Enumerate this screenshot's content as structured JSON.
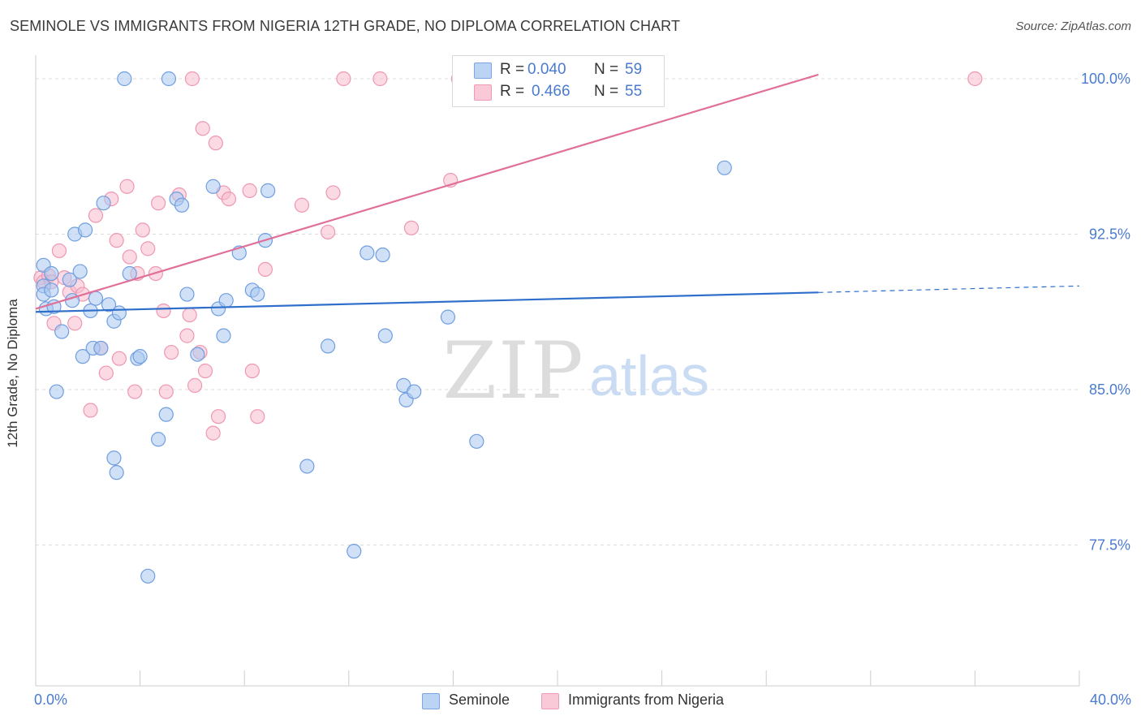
{
  "header": {
    "title": "SEMINOLE VS IMMIGRANTS FROM NIGERIA 12TH GRADE, NO DIPLOMA CORRELATION CHART",
    "source": "Source: ZipAtlas.com"
  },
  "watermark": {
    "zip": "ZIP",
    "atlas": "atlas"
  },
  "legend_top": {
    "rows": [
      {
        "r_label": "R =",
        "r_value": "0.040",
        "n_label": "N =",
        "n_value": "59"
      },
      {
        "r_label": "R =",
        "r_value": "0.466",
        "n_label": "N =",
        "n_value": "55"
      }
    ]
  },
  "legend_bottom": {
    "items": [
      "Seminole",
      "Immigrants from Nigeria"
    ]
  },
  "axis": {
    "x_min_label": "0.0%",
    "x_max_label": "40.0%"
  },
  "colors": {
    "seminole_fill": "#aac8f0",
    "seminole_stroke": "#6f9ee0",
    "seminole_line": "#2f6fcb",
    "nigeria_fill": "#f7bccd",
    "nigeria_stroke": "#ef97b1",
    "nigeria_line": "#e0709a",
    "tick_label": "#4a7bd0",
    "grid": "#dddddd"
  },
  "chart_data": {
    "type": "scatter",
    "title": "SEMINOLE VS IMMIGRANTS FROM NIGERIA 12TH GRADE, NO DIPLOMA CORRELATION CHART",
    "xlabel": "",
    "ylabel": "12th Grade, No Diploma",
    "xlim": [
      0,
      40
    ],
    "ylim": [
      70.0,
      100.5
    ],
    "x_unit": "%",
    "y_unit": "%",
    "yticks": [
      77.5,
      85.0,
      92.5,
      100.0
    ],
    "ytick_labels": [
      "77.5%",
      "85.0%",
      "92.5%",
      "100.0%"
    ],
    "grid": "horizontal dashed",
    "legend_position": "top-center",
    "series": [
      {
        "name": "Seminole",
        "r": 0.04,
        "n": 59,
        "trend": {
          "x": [
            0,
            30,
            40
          ],
          "y": [
            88.75,
            89.7,
            90.0
          ],
          "dashed_from_x": 30
        },
        "points": [
          [
            0.3,
            91.0
          ],
          [
            0.3,
            90.0
          ],
          [
            0.3,
            89.6
          ],
          [
            0.4,
            88.9
          ],
          [
            0.6,
            90.6
          ],
          [
            0.6,
            89.8
          ],
          [
            0.7,
            89.0
          ],
          [
            0.8,
            84.9
          ],
          [
            1.0,
            87.8
          ],
          [
            1.3,
            90.3
          ],
          [
            1.4,
            89.3
          ],
          [
            1.5,
            92.5
          ],
          [
            1.7,
            90.7
          ],
          [
            1.8,
            86.6
          ],
          [
            1.9,
            92.7
          ],
          [
            2.1,
            88.8
          ],
          [
            2.2,
            87.0
          ],
          [
            2.3,
            89.4
          ],
          [
            2.5,
            87.0
          ],
          [
            2.6,
            94.0
          ],
          [
            2.8,
            89.1
          ],
          [
            3.0,
            81.7
          ],
          [
            3.0,
            88.3
          ],
          [
            3.1,
            81.0
          ],
          [
            3.2,
            88.7
          ],
          [
            3.4,
            100.0
          ],
          [
            3.6,
            90.6
          ],
          [
            3.9,
            86.5
          ],
          [
            4.0,
            86.6
          ],
          [
            4.3,
            76.0
          ],
          [
            4.7,
            82.6
          ],
          [
            5.0,
            83.8
          ],
          [
            5.1,
            100.0
          ],
          [
            5.4,
            94.2
          ],
          [
            5.6,
            93.9
          ],
          [
            5.8,
            89.6
          ],
          [
            6.2,
            86.7
          ],
          [
            6.8,
            94.8
          ],
          [
            7.0,
            88.9
          ],
          [
            7.2,
            87.6
          ],
          [
            7.3,
            89.3
          ],
          [
            7.8,
            91.6
          ],
          [
            8.3,
            89.8
          ],
          [
            8.5,
            89.6
          ],
          [
            8.8,
            92.2
          ],
          [
            8.9,
            94.6
          ],
          [
            10.4,
            81.3
          ],
          [
            11.2,
            87.1
          ],
          [
            12.2,
            77.2
          ],
          [
            12.7,
            91.6
          ],
          [
            13.3,
            91.5
          ],
          [
            13.4,
            87.6
          ],
          [
            14.1,
            85.2
          ],
          [
            14.2,
            84.5
          ],
          [
            14.5,
            84.9
          ],
          [
            15.8,
            88.5
          ],
          [
            16.9,
            82.5
          ],
          [
            19.9,
            100.0
          ],
          [
            26.4,
            95.7
          ]
        ]
      },
      {
        "name": "Immigrants from Nigeria",
        "r": 0.466,
        "n": 55,
        "trend": {
          "x": [
            0,
            30
          ],
          "y": [
            88.9,
            100.2
          ]
        },
        "points": [
          [
            0.2,
            90.4
          ],
          [
            0.3,
            90.2
          ],
          [
            0.5,
            90.5
          ],
          [
            0.6,
            90.2
          ],
          [
            0.7,
            88.2
          ],
          [
            0.9,
            91.7
          ],
          [
            1.1,
            90.4
          ],
          [
            1.3,
            89.7
          ],
          [
            1.5,
            88.2
          ],
          [
            1.6,
            90.0
          ],
          [
            1.8,
            89.6
          ],
          [
            2.1,
            84.0
          ],
          [
            2.3,
            93.4
          ],
          [
            2.5,
            87.0
          ],
          [
            2.7,
            85.8
          ],
          [
            2.9,
            94.2
          ],
          [
            3.1,
            92.2
          ],
          [
            3.2,
            86.5
          ],
          [
            3.5,
            94.8
          ],
          [
            3.6,
            91.4
          ],
          [
            3.8,
            84.9
          ],
          [
            3.9,
            90.6
          ],
          [
            4.1,
            92.7
          ],
          [
            4.3,
            91.8
          ],
          [
            4.6,
            90.6
          ],
          [
            4.7,
            94.0
          ],
          [
            4.9,
            88.8
          ],
          [
            5.0,
            84.9
          ],
          [
            5.2,
            86.8
          ],
          [
            5.5,
            94.4
          ],
          [
            5.8,
            87.6
          ],
          [
            5.9,
            88.6
          ],
          [
            6.0,
            100.0
          ],
          [
            6.1,
            85.2
          ],
          [
            6.3,
            86.8
          ],
          [
            6.4,
            97.6
          ],
          [
            6.5,
            85.9
          ],
          [
            6.8,
            82.9
          ],
          [
            6.9,
            96.9
          ],
          [
            7.0,
            83.7
          ],
          [
            7.2,
            94.5
          ],
          [
            7.4,
            94.2
          ],
          [
            8.2,
            94.6
          ],
          [
            8.3,
            85.9
          ],
          [
            8.5,
            83.7
          ],
          [
            8.8,
            90.8
          ],
          [
            10.2,
            93.9
          ],
          [
            11.2,
            92.6
          ],
          [
            11.4,
            94.5
          ],
          [
            11.8,
            100.0
          ],
          [
            13.2,
            100.0
          ],
          [
            14.4,
            92.8
          ],
          [
            15.9,
            95.1
          ],
          [
            16.2,
            100.0
          ],
          [
            36.0,
            100.0
          ]
        ]
      }
    ]
  }
}
